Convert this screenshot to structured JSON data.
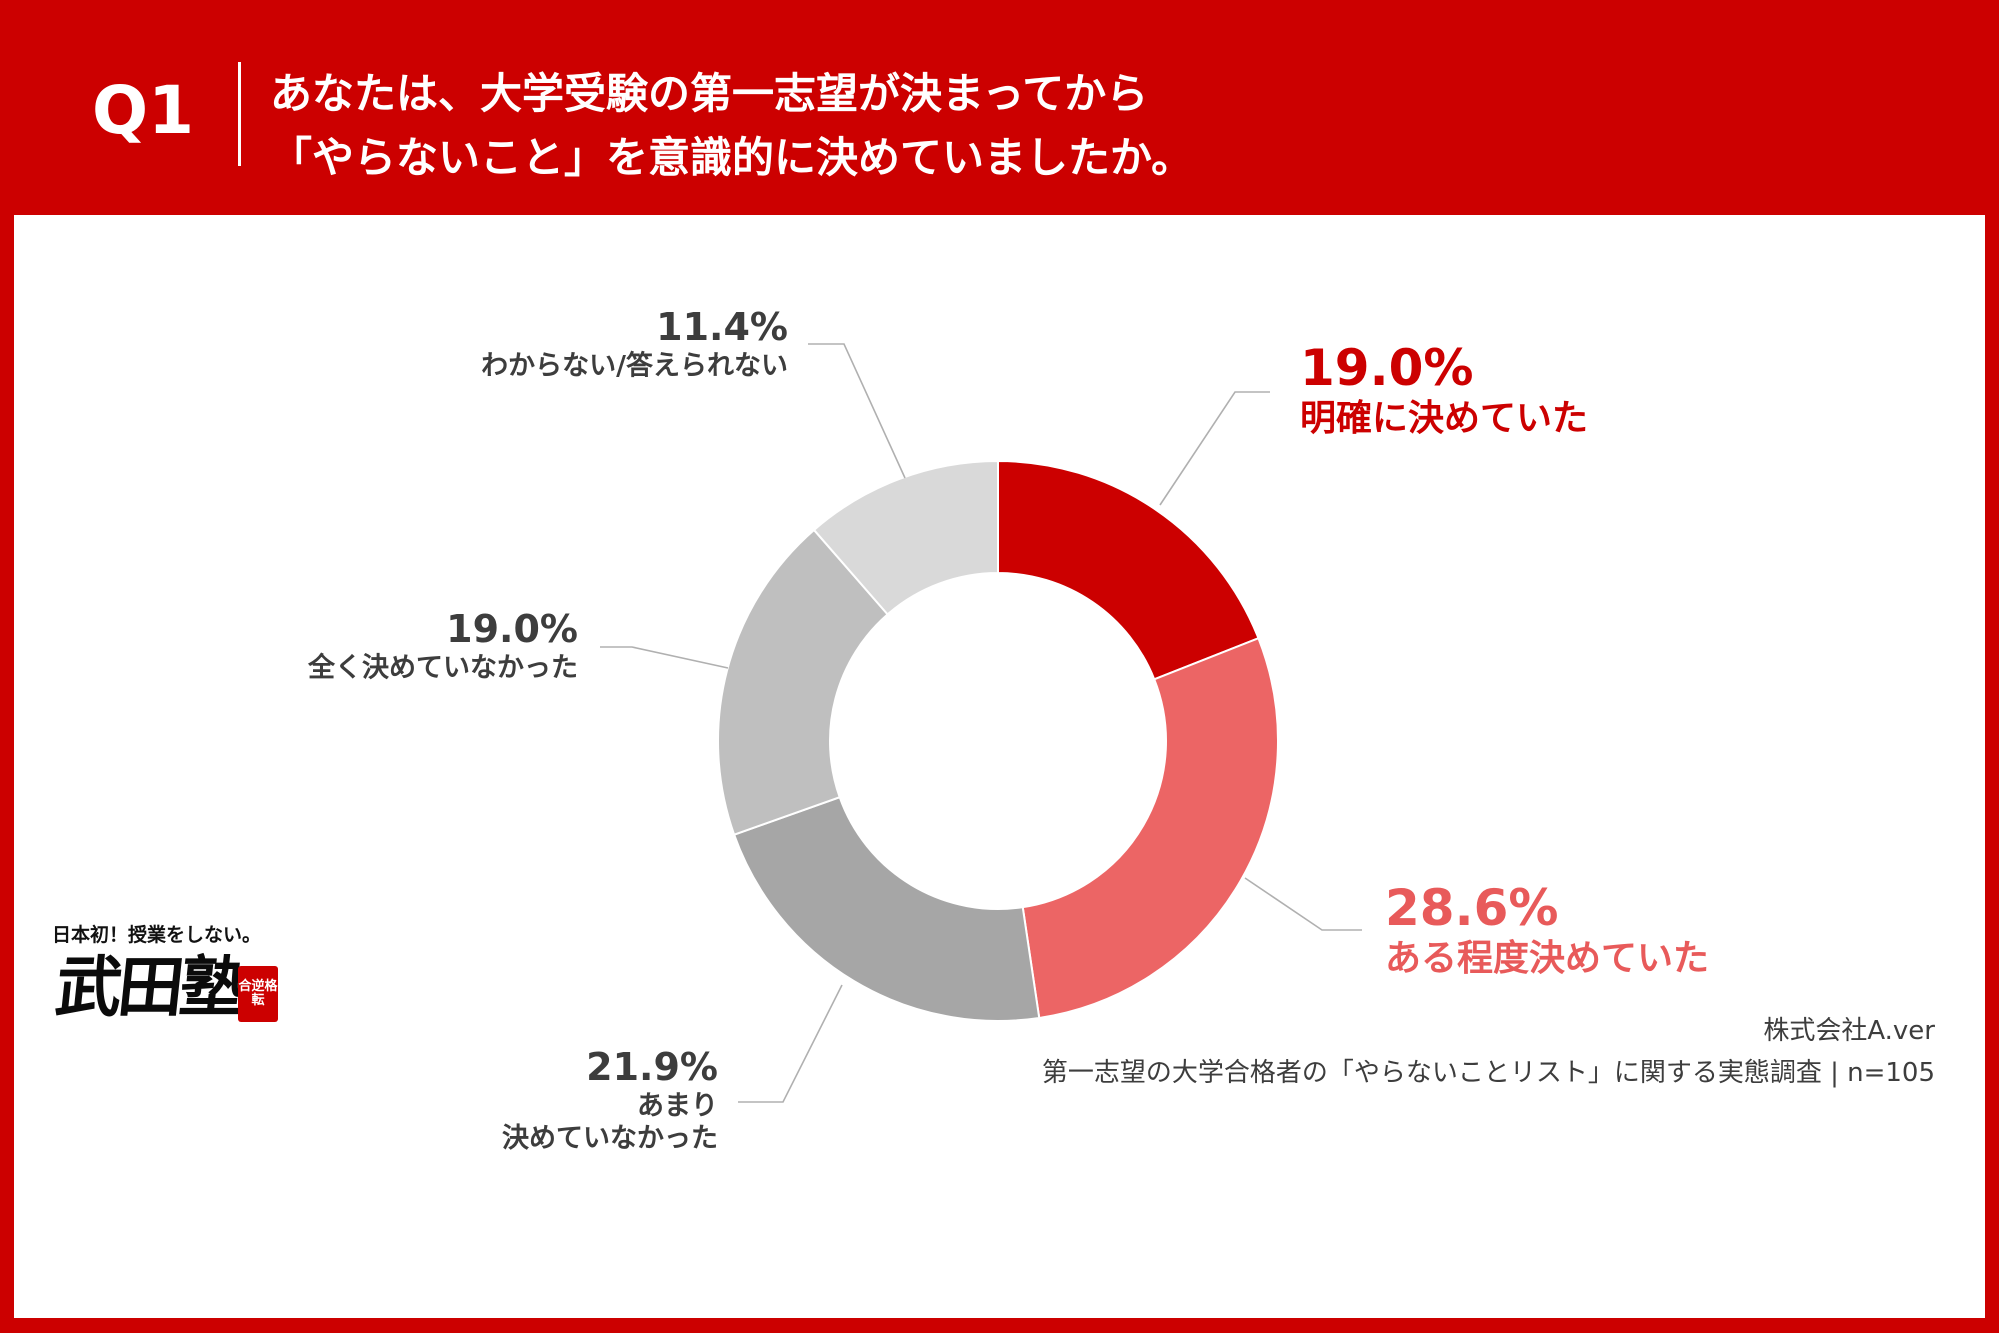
{
  "header": {
    "q_label": "Q1",
    "question_line1": "あなたは、大学受験の第一志望が決まってから",
    "question_line2": "「やらないこと」を意識的に決めていましたか。"
  },
  "chart_data": {
    "type": "pie",
    "donut": true,
    "slices": [
      {
        "pct_label": "19.0%",
        "label_lines": [
          "明確に決めていた"
        ],
        "value": 19.0,
        "color": "#cc0000",
        "label_color": "#cc0000"
      },
      {
        "pct_label": "28.6%",
        "label_lines": [
          "ある程度決めていた"
        ],
        "value": 28.6,
        "color": "#ec6565",
        "label_color": "#e85a5a"
      },
      {
        "pct_label": "21.9%",
        "label_lines": [
          "あまり",
          "決めていなかった"
        ],
        "value": 21.9,
        "color": "#a6a6a6",
        "label_color": "#3d3d3d"
      },
      {
        "pct_label": "19.0%",
        "label_lines": [
          "全く決めていなかった"
        ],
        "value": 19.0,
        "color": "#bfbfbf",
        "label_color": "#3d3d3d"
      },
      {
        "pct_label": "11.4%",
        "label_lines": [
          "わからない/答えられない"
        ],
        "value": 11.4,
        "color": "#d9d9d9",
        "label_color": "#3d3d3d"
      }
    ]
  },
  "footer": {
    "company": "株式会社A.ver",
    "survey": "第一志望の大学合格者の「やらないことリスト」に関する実態調査 | n=105"
  },
  "logo": {
    "tagline": "日本初！授業をしない。",
    "name": "武田塾",
    "seal": "合逆格転"
  },
  "colors": {
    "brand_red": "#cc0000",
    "background": "#ffffff",
    "connector": "#b0b0b0"
  }
}
